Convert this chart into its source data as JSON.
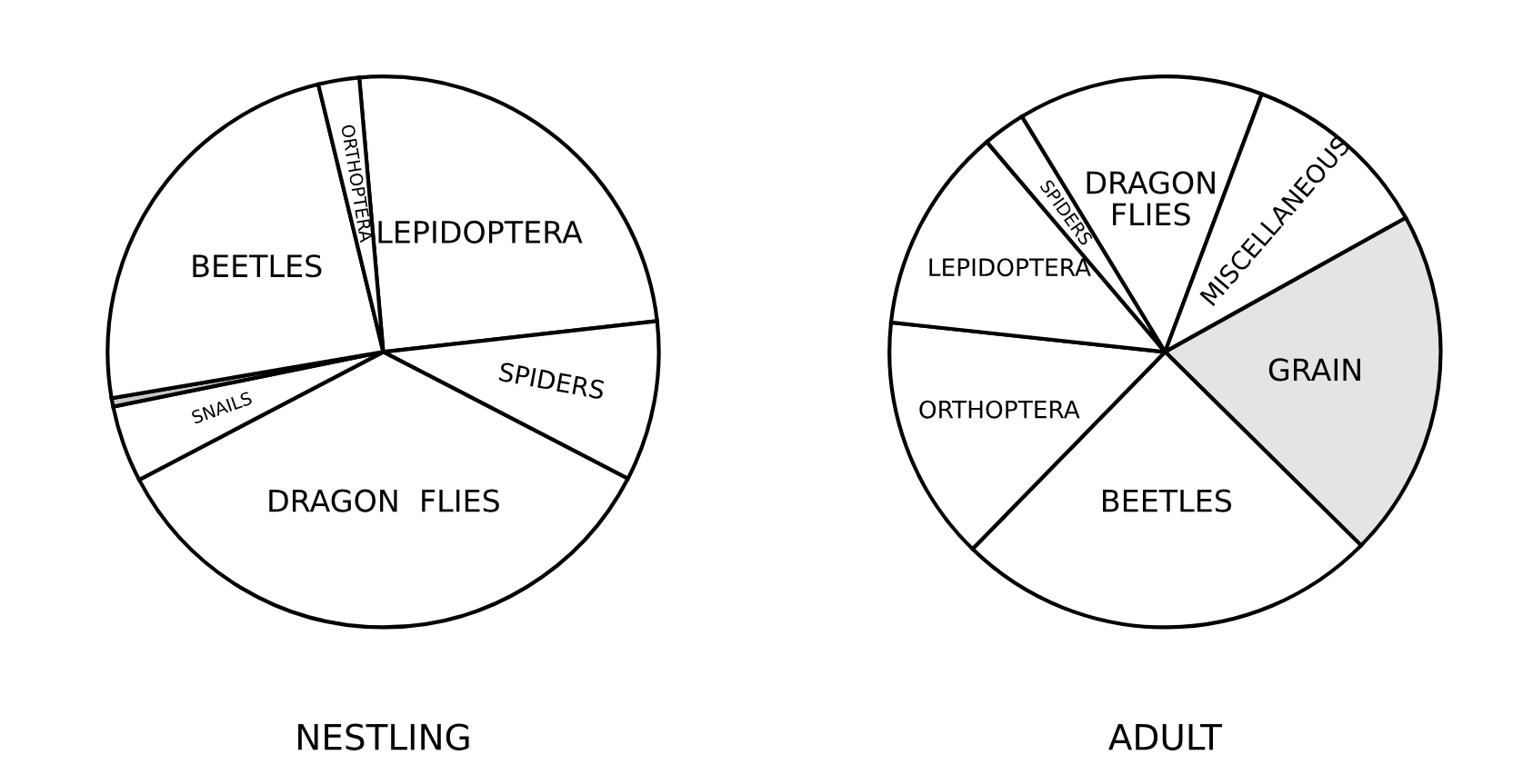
{
  "chart_data": [
    {
      "type": "pie",
      "title": "NESTLING",
      "categories": [
        "LEPIDOPTERA",
        "SPIDERS",
        "DRAGON  FLIES",
        "SNAILS",
        null,
        "BEETLES",
        "ORTHOPTERA"
      ],
      "values": [
        24.6,
        9.4,
        34.7,
        4.5,
        0.5,
        23.9,
        2.4
      ],
      "colors": [
        "#ffffff",
        "#ffffff",
        "#ffffff",
        "#ffffff",
        "#c8c8c8",
        "#ffffff",
        "#ffffff"
      ]
    },
    {
      "type": "pie",
      "title": "ADULT",
      "categories": [
        "DRAGON\nFLIES",
        "MISCELLANEOUS",
        "GRAIN",
        "BEETLES",
        "ORTHOPTERA",
        "LEPIDOPTERA",
        "SPIDERS"
      ],
      "values": [
        14.4,
        11.2,
        20.5,
        24.9,
        14.4,
        12.1,
        2.5
      ],
      "colors": [
        "#ffffff",
        "#ffffff",
        "#e4e4e4",
        "#ffffff",
        "#ffffff",
        "#ffffff",
        "#ffffff"
      ]
    }
  ]
}
